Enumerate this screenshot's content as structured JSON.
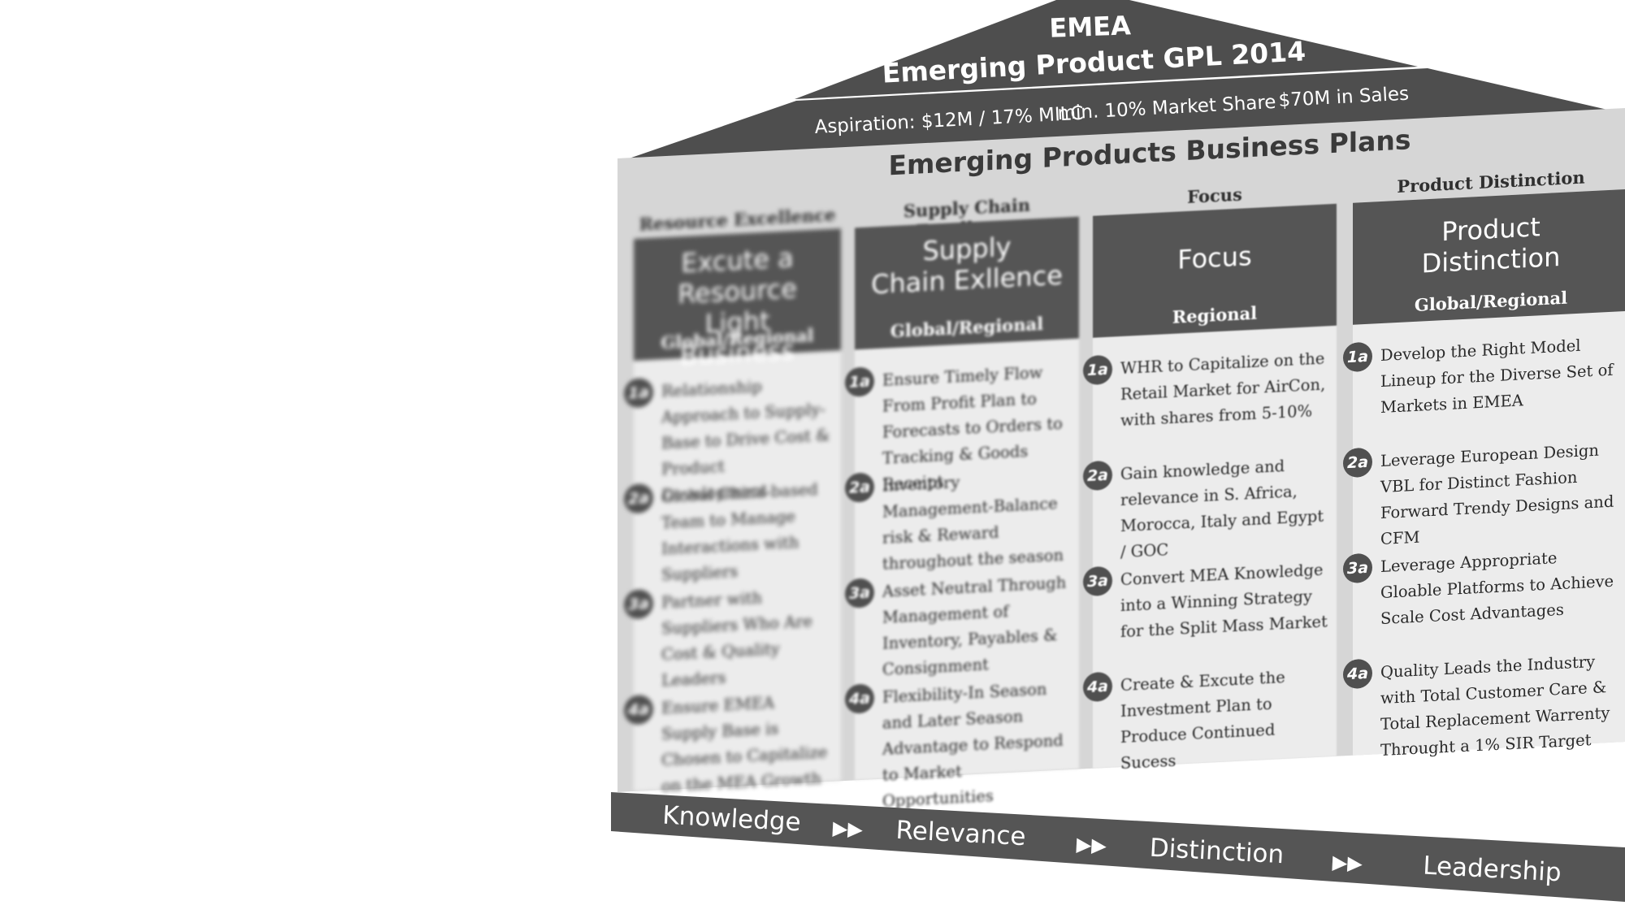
{
  "roof": {
    "region": "EMEA",
    "title": "Emerging Product GPL 2014",
    "aspiration": "Aspiration: $12M / 17% MILC",
    "share": "min. 10% Market Share",
    "sales": "$70M in Sales"
  },
  "plans_title": "Emerging Products Business Plans",
  "columns": [
    {
      "header": "Resource Excellence",
      "pillar_title": "Excute a\nResource Light\nBusiness",
      "scope": "Global/Regional",
      "items": [
        {
          "badge": "1a",
          "text": "Relationship Approach to Supply-Base to Drive Cost & Product Development"
        },
        {
          "badge": "2a",
          "text": "Global China-based Team to Manage Interactions with Suppliers"
        },
        {
          "badge": "3a",
          "text": "Partner with Suppliers Who Are Cost & Quality Leaders"
        },
        {
          "badge": "4a",
          "text": "Ensure EMEA Supply Base is Chosen to Capitalize on the MEA Growth Expectations"
        }
      ]
    },
    {
      "header": "Supply Chain Excellence",
      "pillar_title": "Supply\nChain Exllence",
      "scope": "Global/Regional",
      "items": [
        {
          "badge": "1a",
          "text": "Ensure Timely Flow From Profit Plan to Forecasts to Orders to Tracking & Goods Receipt"
        },
        {
          "badge": "2a",
          "text": "Inventory Management-Balance risk & Reward throughout the season"
        },
        {
          "badge": "3a",
          "text": "Asset Neutral Through Management of Inventory, Payables & Consignment"
        },
        {
          "badge": "4a",
          "text": "Flexibility-In Season and Later Season Advantage to Respond to Market Opportunities"
        }
      ]
    },
    {
      "header": "Focus",
      "pillar_title": "Focus",
      "scope": "Regional",
      "items": [
        {
          "badge": "1a",
          "text": "WHR to Capitalize on the Retail Market for AirCon, with shares from 5-10%"
        },
        {
          "badge": "2a",
          "text": "Gain knowledge and relevance in S. Africa, Morocca, Italy and Egypt / GOC"
        },
        {
          "badge": "3a",
          "text": "Convert MEA Knowledge into a Winning Strategy for the Split Mass Market"
        },
        {
          "badge": "4a",
          "text": "Create & Excute the Investment Plan to Produce Continued Sucess"
        }
      ]
    },
    {
      "header": "Product Distinction",
      "pillar_title": "Product\nDistinction",
      "scope": "Global/Regional",
      "items": [
        {
          "badge": "1a",
          "text": "Develop the Right Model Lineup for the Diverse Set of Markets in EMEA"
        },
        {
          "badge": "2a",
          "text": "Leverage European Design VBL for Distinct Fashion Forward Trendy Designs and CFM"
        },
        {
          "badge": "3a",
          "text": "Leverage Appropriate Gloable Platforms to Achieve Scale Cost Advantages"
        },
        {
          "badge": "4a",
          "text": "Quality Leads the Industry with Total Customer Care & Total Replacement Warrenty Throught a 1% SIR Target"
        }
      ]
    }
  ],
  "base": {
    "steps": [
      "Knowledge",
      "Relevance",
      "Distinction",
      "Leadership"
    ],
    "arrow_glyph": "▶▶"
  },
  "colors": {
    "dark_band": "#505050",
    "panel": "#d6d6d6",
    "column": "#ececec"
  }
}
